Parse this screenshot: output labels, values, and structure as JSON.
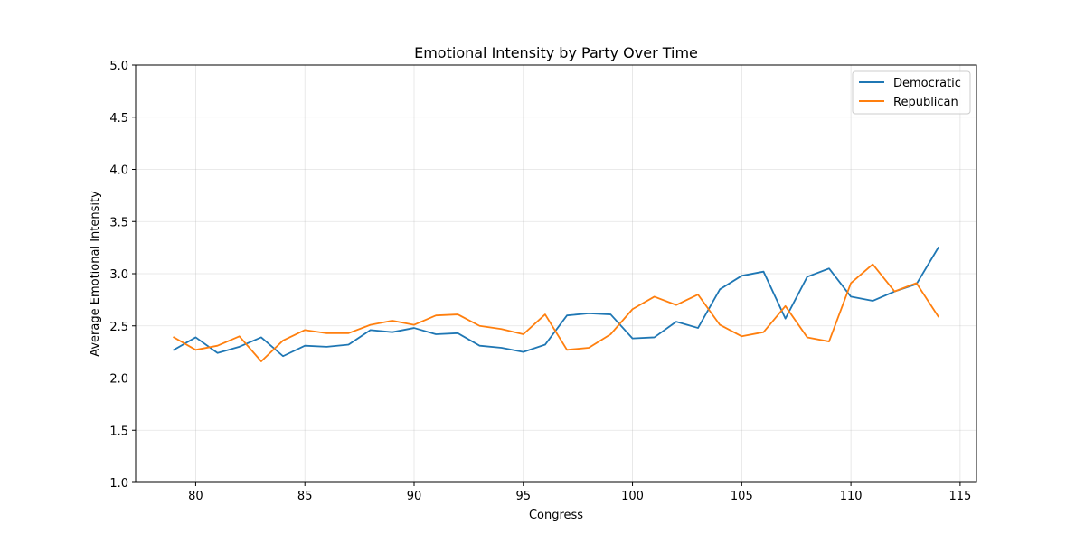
{
  "chart_data": {
    "type": "line",
    "title": "Emotional Intensity by Party Over Time",
    "xlabel": "Congress",
    "ylabel": "Average Emotional Intensity",
    "xlim": [
      77.25,
      115.75
    ],
    "ylim": [
      1.0,
      5.0
    ],
    "xticks": [
      80,
      85,
      90,
      95,
      100,
      105,
      110,
      115
    ],
    "xtick_labels": [
      "80",
      "85",
      "90",
      "95",
      "100",
      "105",
      "110",
      "115"
    ],
    "yticks": [
      1.0,
      1.5,
      2.0,
      2.5,
      3.0,
      3.5,
      4.0,
      4.5,
      5.0
    ],
    "ytick_labels": [
      "1.0",
      "1.5",
      "2.0",
      "2.5",
      "3.0",
      "3.5",
      "4.0",
      "4.5",
      "5.0"
    ],
    "grid": true,
    "legend_position": "top-right",
    "x": [
      79,
      80,
      81,
      82,
      83,
      84,
      85,
      86,
      87,
      88,
      89,
      90,
      91,
      92,
      93,
      94,
      95,
      96,
      97,
      98,
      99,
      100,
      101,
      102,
      103,
      104,
      105,
      106,
      107,
      108,
      109,
      110,
      111,
      112,
      113,
      114
    ],
    "series": [
      {
        "name": "Democratic",
        "color": "#1f77b4",
        "values": [
          2.27,
          2.39,
          2.24,
          2.3,
          2.39,
          2.21,
          2.31,
          2.3,
          2.32,
          2.46,
          2.44,
          2.48,
          2.42,
          2.43,
          2.31,
          2.29,
          2.25,
          2.32,
          2.6,
          2.62,
          2.61,
          2.38,
          2.39,
          2.54,
          2.48,
          2.85,
          2.98,
          3.02,
          2.57,
          2.97,
          3.05,
          2.78,
          2.74,
          2.83,
          2.9,
          3.25
        ]
      },
      {
        "name": "Republican",
        "color": "#ff7f0e",
        "values": [
          2.39,
          2.27,
          2.31,
          2.4,
          2.16,
          2.36,
          2.46,
          2.43,
          2.43,
          2.51,
          2.55,
          2.51,
          2.6,
          2.61,
          2.5,
          2.47,
          2.42,
          2.61,
          2.27,
          2.29,
          2.42,
          2.66,
          2.78,
          2.7,
          2.8,
          2.51,
          2.4,
          2.44,
          2.69,
          2.39,
          2.35,
          2.91,
          3.09,
          2.83,
          2.91,
          2.59
        ]
      }
    ]
  }
}
